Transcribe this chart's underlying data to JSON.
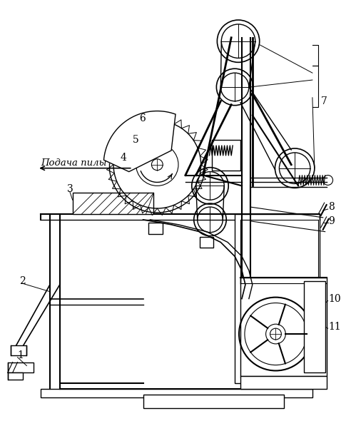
{
  "background_color": "#ffffff",
  "line_color": "#000000",
  "arrow_label": "Подача пилы",
  "figsize": [
    4.99,
    5.9
  ],
  "dpi": 100
}
